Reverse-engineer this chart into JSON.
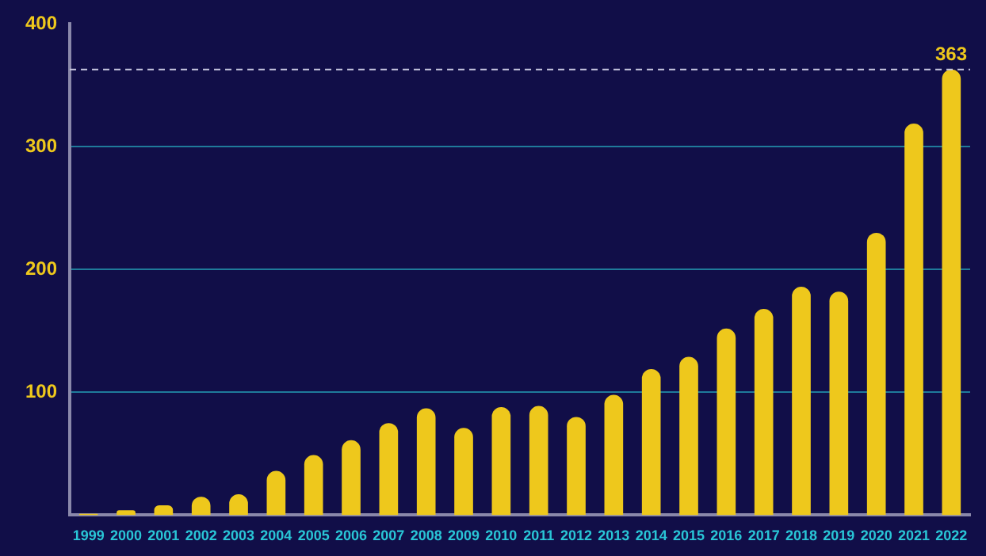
{
  "chart_data": {
    "type": "bar",
    "categories": [
      "1999",
      "2000",
      "2001",
      "2002",
      "2003",
      "2004",
      "2005",
      "2006",
      "2007",
      "2008",
      "2009",
      "2010",
      "2011",
      "2012",
      "2013",
      "2014",
      "2015",
      "2016",
      "2017",
      "2018",
      "2019",
      "2020",
      "2021",
      "2022"
    ],
    "values": [
      1,
      4,
      8,
      15,
      17,
      36,
      49,
      61,
      75,
      87,
      71,
      88,
      89,
      80,
      98,
      119,
      129,
      152,
      168,
      186,
      182,
      230,
      319,
      363
    ],
    "color": "#eec81c",
    "ylim": [
      0,
      400
    ],
    "yticks": [
      100,
      200,
      300,
      400
    ],
    "grid": "y",
    "legend": false,
    "ref_lines": [
      {
        "axis": "y",
        "value": 363,
        "label": "363",
        "color": "#c8c8e0",
        "line_style": "dashed"
      }
    ]
  }
}
